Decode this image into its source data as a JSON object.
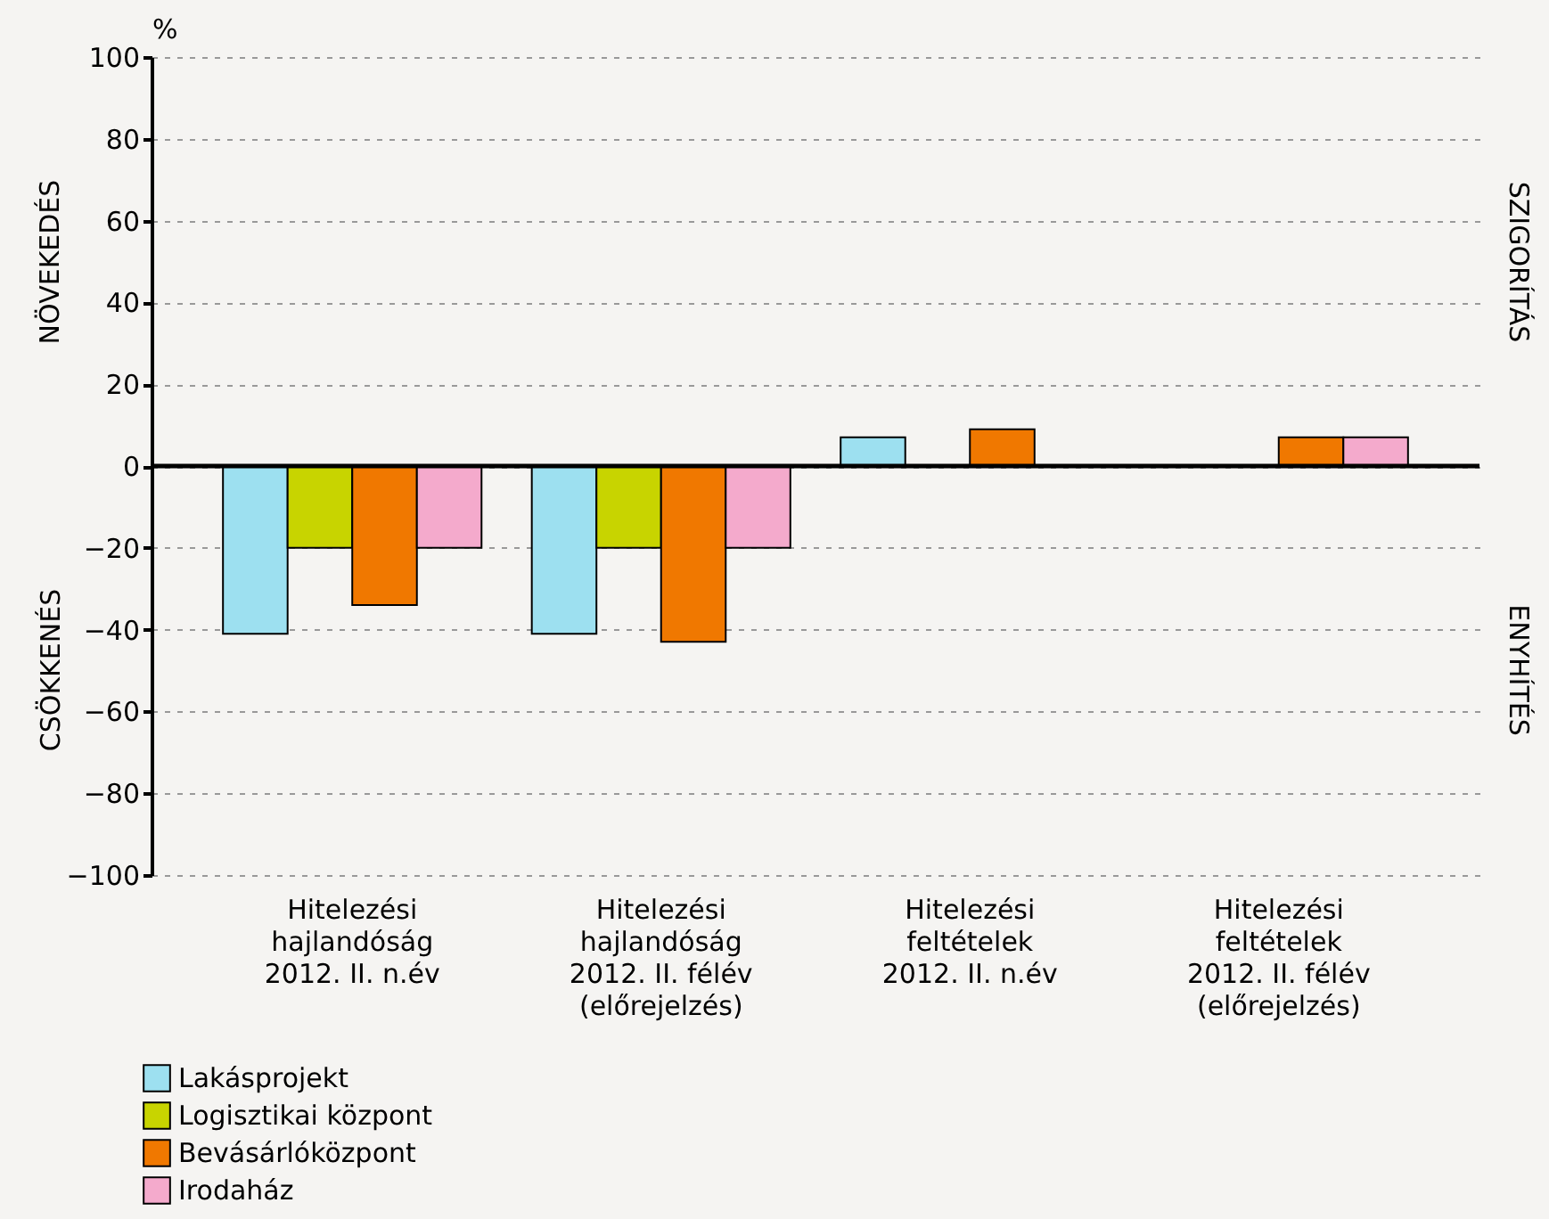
{
  "chart_data": {
    "type": "bar",
    "ylabel": "%",
    "categories": [
      "Hitelezési\nhajlandóság\n2012. II. n.év",
      "Hitelezési\nhajlandóság\n2012. II. félév\n(előrejelzés)",
      "Hitelezési\nfeltételek\n2012. II. n.év",
      "Hitelezési\nfeltételek\n2012. II. félév\n(előrejelzés)"
    ],
    "series": [
      {
        "name": "Lakásprojekt",
        "color": "#9de0f0",
        "values": [
          -41,
          -41,
          7,
          null
        ]
      },
      {
        "name": "Logisztikai központ",
        "color": "#c8d400",
        "values": [
          -20,
          -20,
          null,
          null
        ]
      },
      {
        "name": "Bevásárlóközpont",
        "color": "#f07800",
        "values": [
          -34,
          -43,
          9,
          7
        ]
      },
      {
        "name": "Irodaház",
        "color": "#f4aacc",
        "values": [
          -20,
          -20,
          null,
          7
        ]
      }
    ],
    "ylim": [
      -100,
      100
    ],
    "yticks": [
      -100,
      -80,
      -60,
      -40,
      -20,
      0,
      20,
      40,
      60,
      80,
      100
    ],
    "grid": "y",
    "legend": "bottom left",
    "ref_lines": [
      {
        "axis": "y",
        "value": 0,
        "color": "#000000"
      }
    ],
    "annotations": [
      "NÖVEKEDÉS",
      "CSÖKKENÉS",
      "SZIGORÍTÁS",
      "ENYHÍTÉS"
    ]
  }
}
